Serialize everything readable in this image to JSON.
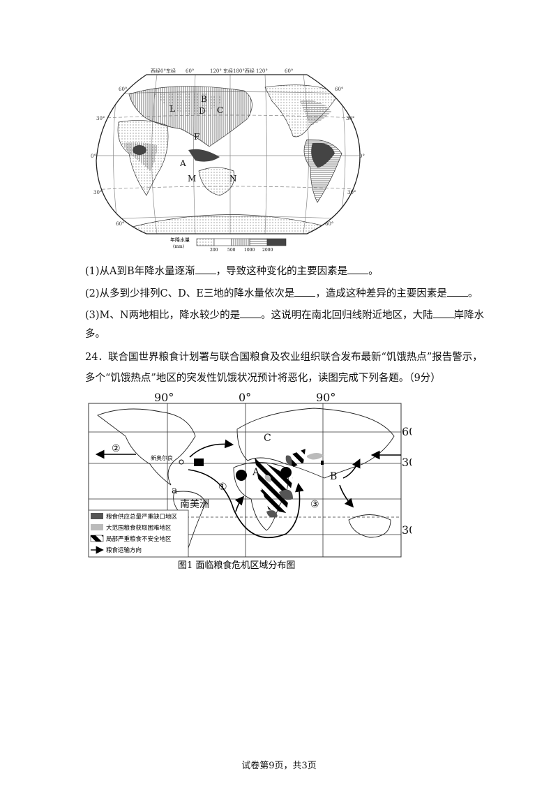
{
  "map1": {
    "top_labels": [
      "西经0°东经",
      "60°",
      "120°",
      "东经180°西经",
      "120°",
      "60°"
    ],
    "side_labels": [
      "60°",
      "30°",
      "0°",
      "30°",
      "60°",
      "60°",
      "30°",
      "0°",
      "30°",
      "60°"
    ],
    "point_labels": [
      "B",
      "L",
      "D",
      "C",
      "F",
      "A",
      "M",
      "N"
    ],
    "legend": {
      "title": "年降水量",
      "unit": "(mm)",
      "ticks": [
        "200",
        "500",
        "1000",
        "2000"
      ]
    }
  },
  "questions": [
    {
      "parts": [
        "(1)从A到B年降水量逐渐",
        "，导致这种变化的主要因素是",
        "。"
      ]
    },
    {
      "parts": [
        "(2)从多到少排列C、D、E三地的降水量依次是",
        "，造成这种差异的主要因素是",
        "。"
      ]
    },
    {
      "parts": [
        "(3)M、N两地相比，降水较少的是",
        "。这说明在南北回归线附近地区，大陆",
        "岸降水"
      ],
      "continuation": "多。"
    }
  ],
  "q24": {
    "line1": "24．联合国世界粮食计划署与联合国粮食及农业组织联合发布最新“饥饿热点”报告警示，",
    "line2": "多个“饥饿热点”地区的突发性饥饿状况预计将恶化，读图完成下列各题。（9分）"
  },
  "map2": {
    "top_labels": [
      "90°",
      "0°",
      "90°"
    ],
    "right_labels": [
      "60°",
      "30°",
      "30°"
    ],
    "labels": {
      "circle2": "②",
      "circle1": "①",
      "circle3": "③",
      "A": "A",
      "B": "B",
      "C": "C",
      "a": "a",
      "city": "新奥尔良",
      "continent": "南美洲"
    },
    "legend": [
      {
        "label": "粮食供应总量严重缺口地区",
        "color": "#555555"
      },
      {
        "label": "大范围粮食获取困难地区",
        "color": "#bbbbbb"
      },
      {
        "label": "局部严重粮食不安全地区",
        "pattern": "stripes"
      },
      {
        "label": "粮食运输方向",
        "icon": "arrow-icon"
      }
    ],
    "caption": "图1 面临粮食危机区域分布图"
  },
  "footer": "试卷第9页，共3页"
}
